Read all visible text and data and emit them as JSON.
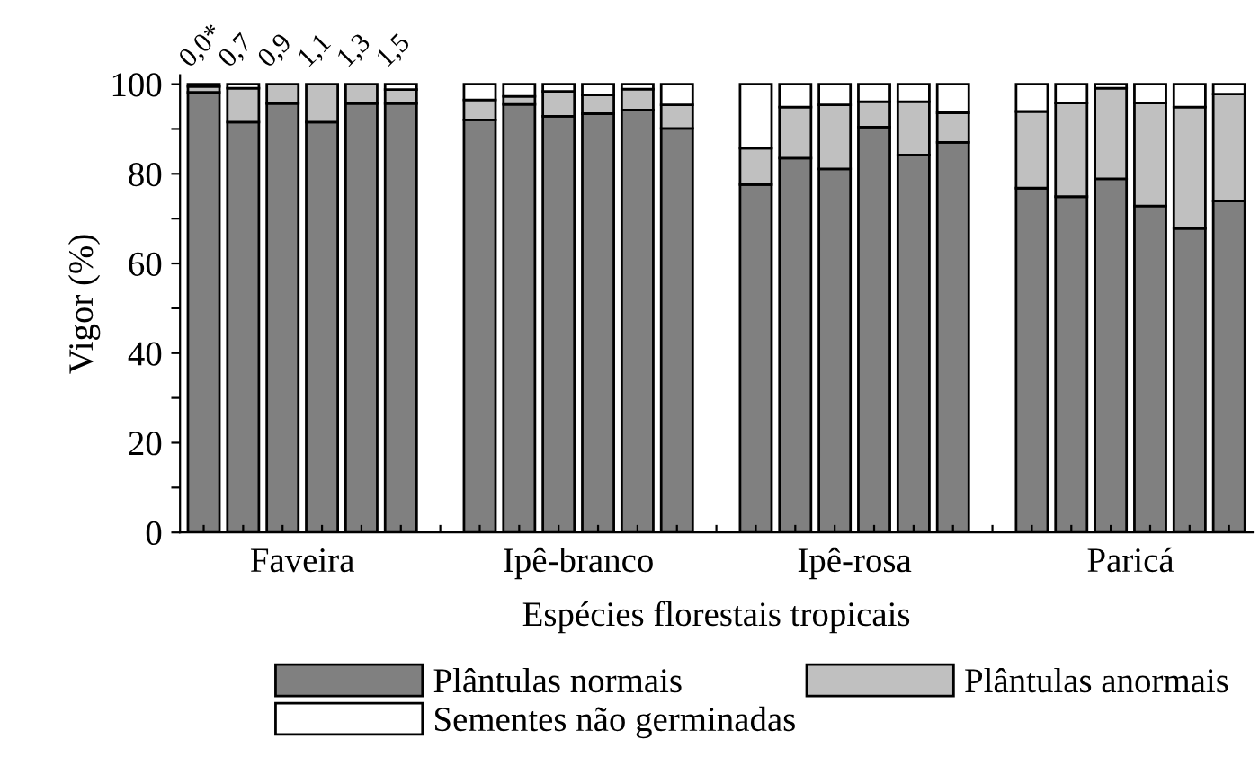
{
  "chart_data": {
    "type": "bar",
    "stacked": true,
    "xlabel": "Espécies florestais tropicais",
    "ylabel": "Vigor (%)",
    "categories": [
      null,
      null,
      null,
      null,
      null,
      null,
      null,
      null,
      null,
      null,
      null,
      null,
      null,
      null,
      null,
      null,
      null,
      null,
      null,
      null,
      null,
      null,
      null,
      null,
      null,
      null,
      null
    ],
    "series": [
      {
        "name": "Plântulas normais",
        "color": "#808080",
        "values": [
          98.2,
          91.5,
          95.7,
          91.5,
          95.7,
          95.7,
          null,
          92.0,
          95.5,
          92.8,
          93.4,
          94.2,
          90.1,
          null,
          77.6,
          83.5,
          81.1,
          90.4,
          84.2,
          87.0,
          null,
          76.8,
          74.9,
          78.9,
          72.8,
          67.8,
          73.9
        ]
      },
      {
        "name": "Plântulas anormais",
        "color": "#c0c0c0",
        "values": [
          1.3,
          7.6,
          4.3,
          8.5,
          4.3,
          3.1,
          null,
          4.5,
          1.8,
          5.6,
          4.2,
          4.7,
          5.3,
          null,
          8.1,
          11.4,
          14.3,
          5.7,
          11.9,
          6.6,
          null,
          17.1,
          20.9,
          20.2,
          23.0,
          27.1,
          23.9
        ]
      },
      {
        "name": "Sementes não germinadas",
        "color": "#ffffff",
        "values": [
          0.5,
          0.9,
          0,
          0,
          0,
          1.2,
          null,
          3.5,
          2.7,
          1.6,
          2.4,
          1.1,
          4.6,
          null,
          14.3,
          5.1,
          4.6,
          3.9,
          3.9,
          6.4,
          null,
          6.1,
          4.2,
          0.9,
          4.2,
          5.1,
          2.2
        ]
      }
    ],
    "ylim": [
      0,
      102
    ],
    "yticks": [
      0,
      {
        "value": 10,
        "label": null
      },
      20,
      {
        "value": 30,
        "label": null
      },
      40,
      {
        "value": 50,
        "label": null
      },
      60,
      {
        "value": 70,
        "label": null
      },
      80,
      {
        "value": 90,
        "label": null
      },
      100
    ],
    "annotations": [
      "0,0*",
      "0,7",
      "0,9",
      "1,1",
      "1,3",
      "1,5",
      "Faveira",
      "Ipê-branco",
      "Ipê-rosa",
      "Paricá"
    ],
    "grid": false,
    "legend": "bottom"
  }
}
